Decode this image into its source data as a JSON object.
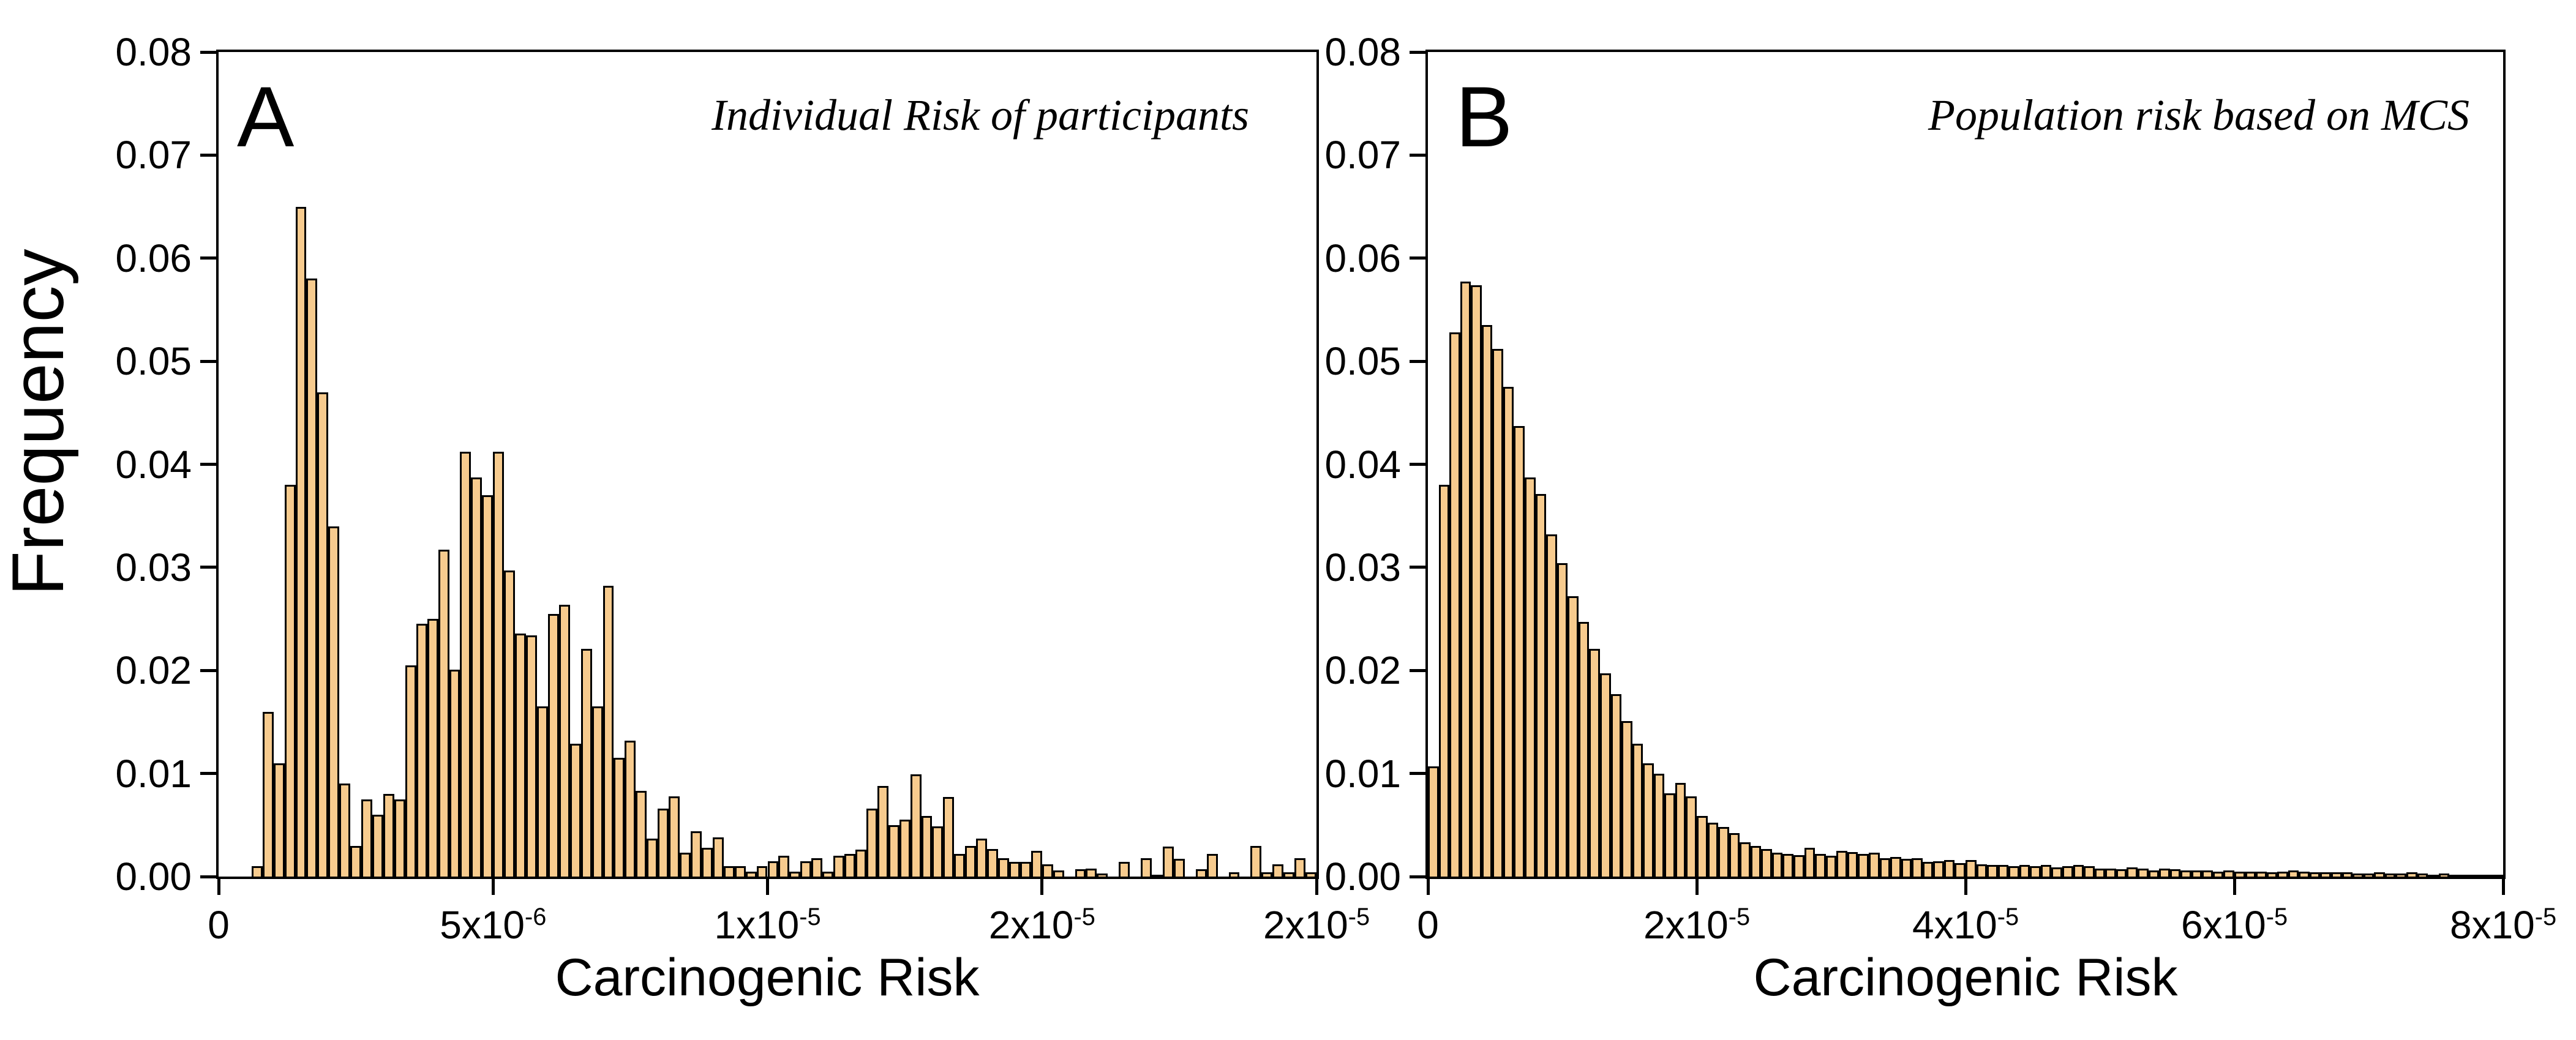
{
  "style": {
    "bar_fill": "#F7CB8E",
    "bar_outline": "#000000",
    "frame_color": "#000000",
    "background": "#ffffff"
  },
  "chart_data": [
    {
      "type": "bar",
      "panel_label": "A",
      "title": "Individual Risk of participants",
      "xlabel": "Carcinogenic Risk",
      "ylabel": "Frequency",
      "x_unit": "1e-6",
      "xlim": [
        0,
        20
      ],
      "ylim": [
        0,
        0.08
      ],
      "x_start": 0.6,
      "bin_width": 0.2,
      "x_tick_values": [
        0,
        5,
        10,
        15,
        20
      ],
      "x_tick_labels": [
        "0",
        "5x10^-6",
        "1x10^-5",
        "2x10^-5",
        "2x10^-5"
      ],
      "y_tick_labels": [
        "0.00",
        "0.01",
        "0.02",
        "0.03",
        "0.04",
        "0.05",
        "0.06",
        "0.07",
        "0.08"
      ],
      "grid": false,
      "legend": "none",
      "values": [
        0.001,
        0.016,
        0.011,
        0.038,
        0.065,
        0.058,
        0.047,
        0.034,
        0.009,
        0.003,
        0.0075,
        0.006,
        0.008,
        0.0075,
        0.0205,
        0.0245,
        0.025,
        0.0317,
        0.0201,
        0.0412,
        0.0387,
        0.037,
        0.0412,
        0.0297,
        0.0236,
        0.0234,
        0.0165,
        0.0255,
        0.0264,
        0.0129,
        0.0221,
        0.0165,
        0.0282,
        0.0115,
        0.0132,
        0.0083,
        0.0037,
        0.0066,
        0.0078,
        0.0023,
        0.0044,
        0.0028,
        0.0038,
        0.001,
        0.001,
        0.0005,
        0.001,
        0.0015,
        0.002,
        0.0005,
        0.0015,
        0.0018,
        0.0005,
        0.002,
        0.0022,
        0.0026,
        0.0066,
        0.0088,
        0.005,
        0.0055,
        0.0099,
        0.0059,
        0.0049,
        0.0077,
        0.0022,
        0.003,
        0.0037,
        0.0027,
        0.0018,
        0.0014,
        0.0014,
        0.0025,
        0.0012,
        0.0006,
        0,
        0.0007,
        0.0008,
        0.0003,
        0,
        0.0014,
        0,
        0.0018,
        0.0002,
        0.0029,
        0.0017,
        0,
        0.0007,
        0.0022,
        0,
        0.0004,
        0,
        0.003,
        0.0004,
        0.0012,
        0.0004,
        0.0018,
        0.0004
      ]
    },
    {
      "type": "bar",
      "panel_label": "B",
      "title": "Population risk based on MCS",
      "xlabel": "Carcinogenic Risk",
      "ylabel": "Frequency",
      "x_unit": "1e-6",
      "xlim": [
        0,
        80
      ],
      "ylim": [
        0,
        0.08
      ],
      "x_start": 0,
      "bin_width": 0.8,
      "x_tick_values": [
        0,
        20,
        40,
        60,
        80
      ],
      "x_tick_labels": [
        "0",
        "2x10^-5",
        "4x10^-5",
        "6x10^-5",
        "8x10^-5"
      ],
      "y_tick_labels": [
        "0.00",
        "0.01",
        "0.02",
        "0.03",
        "0.04",
        "0.05",
        "0.06",
        "0.07",
        "0.08"
      ],
      "grid": false,
      "legend": "none",
      "values": [
        0.0107,
        0.038,
        0.0528,
        0.0577,
        0.0574,
        0.0535,
        0.0512,
        0.0475,
        0.0437,
        0.0387,
        0.0371,
        0.0332,
        0.0304,
        0.0272,
        0.0247,
        0.0221,
        0.0197,
        0.0177,
        0.0151,
        0.0129,
        0.011,
        0.01,
        0.0081,
        0.0091,
        0.0078,
        0.0059,
        0.0052,
        0.0048,
        0.0042,
        0.0033,
        0.003,
        0.0027,
        0.0023,
        0.0022,
        0.0021,
        0.0028,
        0.0022,
        0.002,
        0.0025,
        0.0024,
        0.0022,
        0.0023,
        0.0018,
        0.0019,
        0.0017,
        0.0018,
        0.0014,
        0.0015,
        0.0016,
        0.0013,
        0.0016,
        0.0012,
        0.0011,
        0.0011,
        0.001,
        0.0011,
        0.001,
        0.0011,
        0.0009,
        0.001,
        0.0011,
        0.001,
        0.0008,
        0.0008,
        0.0007,
        0.0009,
        0.0008,
        0.0006,
        0.0008,
        0.0007,
        0.0006,
        0.0006,
        0.0006,
        0.0005,
        0.0006,
        0.0005,
        0.0005,
        0.0005,
        0.0004,
        0.0005,
        0.0006,
        0.0005,
        0.0004,
        0.0004,
        0.0004,
        0.0004,
        0.0003,
        0.0003,
        0.0004,
        0.0003,
        0.0003,
        0.0004,
        0.0003,
        0.0002,
        0.0003,
        0.0002,
        0.0002,
        0.0002,
        0.0002,
        0.0002
      ]
    }
  ]
}
